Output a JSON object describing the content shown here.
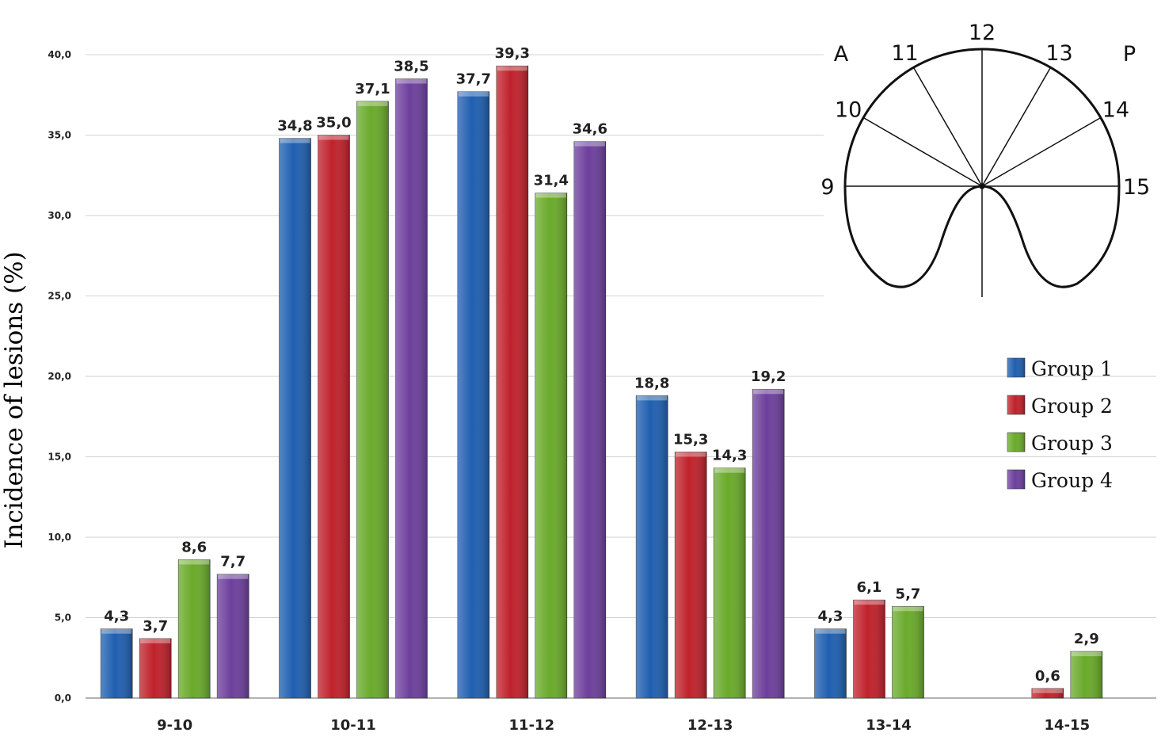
{
  "chart_data": {
    "type": "bar",
    "title": "",
    "xlabel": "",
    "ylabel": "Incidence of lesions (%)",
    "ylim": [
      0,
      40
    ],
    "yticks": [
      "0,0",
      "5,0",
      "10,0",
      "15,0",
      "20,0",
      "25,0",
      "30,0",
      "35,0",
      "40,0"
    ],
    "grid": true,
    "legend_position": "right",
    "categories": [
      "9-10",
      "10-11",
      "11-12",
      "12-13",
      "13-14",
      "14-15"
    ],
    "series": [
      {
        "name": "Group 1",
        "color": "#1f5fb0",
        "values": [
          4.3,
          34.8,
          37.7,
          18.8,
          4.3,
          null
        ],
        "labels": [
          "4,3",
          "34,8",
          "37,7",
          "18,8",
          "4,3",
          ""
        ]
      },
      {
        "name": "Group 2",
        "color": "#c0212b",
        "values": [
          3.7,
          35.0,
          39.3,
          15.3,
          6.1,
          0.6
        ],
        "labels": [
          "3,7",
          "35,0",
          "39,3",
          "15,3",
          "6,1",
          "0,6"
        ]
      },
      {
        "name": "Group 3",
        "color": "#6aaa2a",
        "values": [
          8.6,
          37.1,
          31.4,
          14.3,
          5.7,
          2.9
        ],
        "labels": [
          "8,6",
          "37,1",
          "31,4",
          "14,3",
          "5,7",
          "2,9"
        ]
      },
      {
        "name": "Group 4",
        "color": "#6d3f9c",
        "values": [
          7.7,
          38.5,
          34.6,
          19.2,
          null,
          null
        ],
        "labels": [
          "7,7",
          "38,5",
          "34,6",
          "19,2",
          "",
          ""
        ]
      }
    ]
  },
  "inset_diagram": {
    "anterior": "A",
    "posterior": "P",
    "hours": [
      "9",
      "10",
      "11",
      "12",
      "13",
      "14",
      "15"
    ]
  }
}
